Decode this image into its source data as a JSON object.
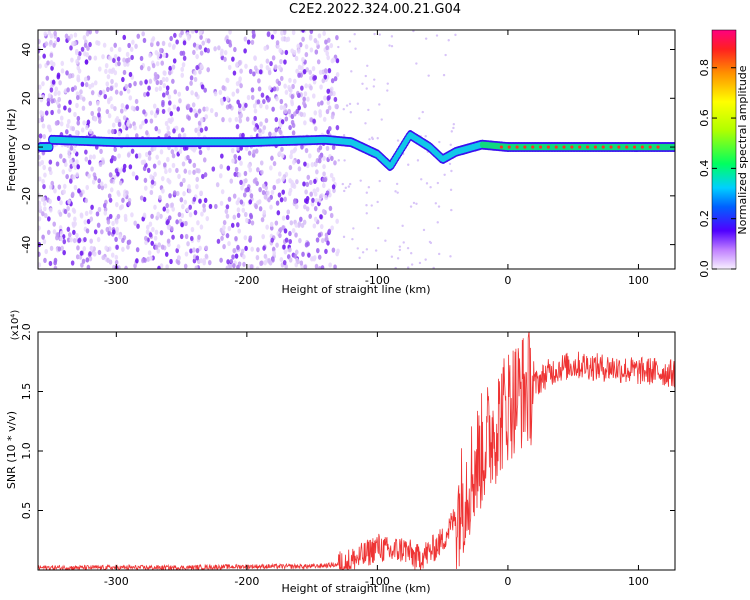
{
  "title": "C2E2.2022.324.00.21.G04",
  "colors": {
    "snr_line": "#ee3333",
    "axis": "#000000"
  },
  "chart_data": [
    {
      "type": "heatmap",
      "xlabel": "Height of straight line (km)",
      "ylabel": "Frequency (Hz)",
      "xlim": [
        -360,
        128
      ],
      "ylim": [
        -50,
        48
      ],
      "x_ticks": [
        -300,
        -200,
        -100,
        0,
        100
      ],
      "y_ticks": [
        -40,
        -20,
        0,
        20,
        40
      ],
      "colormap": "rainbow",
      "colorbar": {
        "label": "Normalized spectral amplitude",
        "range": [
          0,
          0.95
        ],
        "ticks": [
          0.0,
          0.2,
          0.4,
          0.6,
          0.8
        ]
      },
      "noise_region_x": [
        -360,
        -130
      ],
      "signal_trace": [
        {
          "x": -350,
          "y": 3
        },
        {
          "x": -300,
          "y": 2
        },
        {
          "x": -250,
          "y": 2
        },
        {
          "x": -200,
          "y": 2
        },
        {
          "x": -140,
          "y": 3
        },
        {
          "x": -120,
          "y": 2
        },
        {
          "x": -100,
          "y": -3
        },
        {
          "x": -90,
          "y": -8
        },
        {
          "x": -75,
          "y": 5
        },
        {
          "x": -60,
          "y": 0
        },
        {
          "x": -50,
          "y": -5
        },
        {
          "x": -40,
          "y": -2
        },
        {
          "x": -20,
          "y": 1
        },
        {
          "x": 0,
          "y": 0
        },
        {
          "x": 50,
          "y": 0
        },
        {
          "x": 128,
          "y": 0
        }
      ]
    },
    {
      "type": "line",
      "xlabel": "Height of straight line (km)",
      "ylabel": "SNR (10 * v/v)",
      "y_multiplier": "(x10⁴)",
      "xlim": [
        -360,
        128
      ],
      "ylim": [
        0,
        2.0
      ],
      "x_ticks": [
        -300,
        -200,
        -100,
        0,
        100
      ],
      "y_ticks": [
        0.5,
        1.0,
        1.5,
        2.0
      ],
      "y_tick_labels": [
        "0.5",
        "1.0",
        "1.5",
        "2.0"
      ],
      "series": [
        {
          "x": [
            -360,
            -300,
            -250,
            -200,
            -150,
            -125,
            -110,
            -100,
            -90,
            -80,
            -70,
            -60,
            -50,
            -40,
            -30,
            -20,
            -15,
            -10,
            -5,
            0,
            10,
            20,
            30,
            40,
            50,
            60,
            70,
            80,
            90,
            100,
            110,
            128
          ],
          "y": [
            0.02,
            0.02,
            0.02,
            0.03,
            0.03,
            0.05,
            0.12,
            0.2,
            0.15,
            0.18,
            0.1,
            0.15,
            0.25,
            0.45,
            0.75,
            1.0,
            1.1,
            1.2,
            1.3,
            1.4,
            1.5,
            1.55,
            1.65,
            1.7,
            1.72,
            1.72,
            1.7,
            1.7,
            1.68,
            1.67,
            1.67,
            1.65
          ]
        }
      ]
    }
  ]
}
